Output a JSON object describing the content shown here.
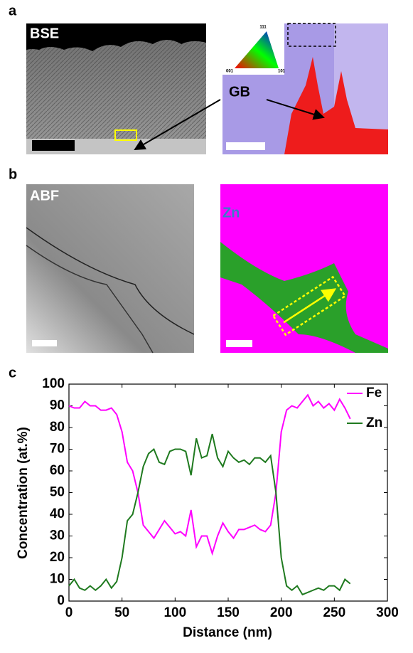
{
  "panels": [
    {
      "label": "a",
      "images": [
        {
          "label": "BSE"
        },
        {
          "label": "GB",
          "key": [
            "111",
            "001",
            "101"
          ]
        }
      ]
    },
    {
      "label": "b",
      "images": [
        {
          "label": "ABF"
        },
        {
          "label": "Zn"
        }
      ]
    },
    {
      "label": "c"
    }
  ],
  "chart_data": {
    "type": "line",
    "xlabel": "Distance (nm)",
    "ylabel": "Concentration (at.%)",
    "x": [
      0,
      5,
      10,
      15,
      20,
      25,
      30,
      35,
      40,
      45,
      50,
      55,
      60,
      65,
      70,
      75,
      80,
      85,
      90,
      95,
      100,
      105,
      110,
      115,
      120,
      125,
      130,
      135,
      140,
      145,
      150,
      155,
      160,
      165,
      170,
      175,
      180,
      185,
      190,
      195,
      200,
      205,
      210,
      215,
      220,
      225,
      230,
      235,
      240,
      245,
      250,
      255,
      260,
      265
    ],
    "series": [
      {
        "name": "Fe",
        "color": "#ff00ff",
        "values": [
          90,
          89,
          89,
          92,
          90,
          90,
          88,
          88,
          89,
          86,
          78,
          64,
          60,
          50,
          35,
          32,
          29,
          33,
          37,
          34,
          31,
          32,
          30,
          42,
          25,
          30,
          30,
          22,
          30,
          36,
          32,
          29,
          33,
          33,
          34,
          35,
          33,
          32,
          35,
          50,
          78,
          88,
          90,
          89,
          92,
          95,
          90,
          92,
          89,
          91,
          88,
          93,
          89,
          84
        ]
      },
      {
        "name": "Zn",
        "color": "#1f7a1f",
        "values": [
          7,
          10,
          6,
          5,
          7,
          5,
          7,
          10,
          6,
          9,
          20,
          37,
          40,
          50,
          62,
          68,
          70,
          64,
          63,
          69,
          70,
          70,
          69,
          58,
          75,
          66,
          67,
          77,
          66,
          62,
          69,
          66,
          64,
          65,
          63,
          66,
          66,
          64,
          67,
          50,
          20,
          7,
          5,
          7,
          3,
          4,
          5,
          6,
          5,
          7,
          7,
          5,
          10,
          8
        ]
      }
    ],
    "xlim": [
      0,
      300
    ],
    "xticks": [
      0,
      50,
      100,
      150,
      200,
      250,
      300
    ],
    "ylim": [
      0,
      100
    ],
    "yticks": [
      0,
      10,
      20,
      30,
      40,
      50,
      60,
      70,
      80,
      90,
      100
    ],
    "legend": "top-right"
  }
}
